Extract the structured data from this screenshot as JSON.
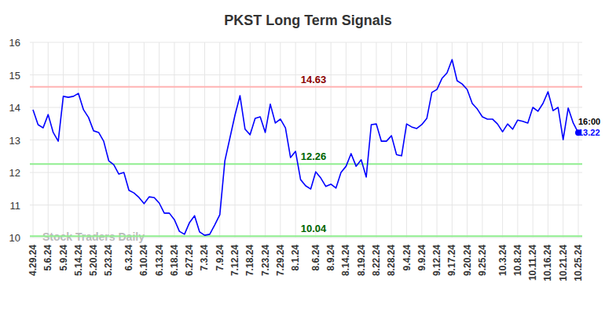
{
  "chart_data": {
    "type": "line",
    "title": "PKST Long Term Signals",
    "categories": [
      "4.29.24",
      null,
      null,
      "5.6.24",
      null,
      null,
      "5.9.24",
      null,
      null,
      "5.14.24",
      null,
      null,
      "5.20.24",
      null,
      null,
      "5.23.24",
      null,
      null,
      null,
      "6.3.24",
      null,
      null,
      "6.10.24",
      null,
      null,
      "6.13.24",
      null,
      null,
      "6.18.24",
      null,
      null,
      "6.27.24",
      null,
      null,
      "7.3.24",
      null,
      null,
      "7.9.24",
      null,
      null,
      "7.12.24",
      null,
      null,
      "7.18.24",
      null,
      null,
      "7.23.24",
      null,
      null,
      "7.29.24",
      null,
      null,
      "8.1.24",
      null,
      null,
      null,
      "8.6.24",
      null,
      null,
      "8.9.24",
      null,
      null,
      "8.14.24",
      null,
      null,
      "8.19.24",
      null,
      null,
      "8.22.24",
      null,
      null,
      "8.28.24",
      null,
      null,
      "9.4.24",
      null,
      null,
      "9.9.24",
      null,
      null,
      "9.12.24",
      null,
      null,
      "9.17.24",
      null,
      null,
      "9.20.24",
      null,
      null,
      "9.25.24",
      null,
      null,
      null,
      "10.3.24",
      null,
      null,
      "10.8.24",
      null,
      null,
      "10.11.24",
      null,
      null,
      "10.16.24",
      null,
      null,
      "10.21.24",
      null,
      null,
      "10.25.24"
    ],
    "values": [
      13.93,
      13.47,
      13.37,
      13.78,
      13.23,
      12.96,
      14.34,
      14.31,
      14.34,
      14.43,
      13.93,
      13.69,
      13.28,
      13.23,
      12.96,
      12.36,
      12.24,
      11.95,
      12.0,
      11.45,
      11.37,
      11.23,
      11.04,
      11.25,
      11.23,
      11.06,
      10.75,
      10.75,
      10.55,
      10.19,
      10.1,
      10.46,
      10.67,
      10.17,
      10.07,
      10.1,
      10.39,
      10.7,
      12.36,
      13.06,
      13.76,
      14.36,
      13.33,
      13.16,
      13.66,
      13.71,
      13.23,
      14.1,
      13.52,
      13.64,
      13.37,
      12.46,
      12.65,
      11.78,
      11.59,
      11.49,
      12.02,
      11.83,
      11.57,
      11.64,
      11.52,
      12.0,
      12.19,
      12.58,
      12.19,
      12.39,
      11.86,
      13.47,
      13.49,
      12.96,
      12.96,
      13.13,
      12.55,
      12.51,
      13.49,
      13.4,
      13.35,
      13.47,
      13.66,
      14.46,
      14.55,
      14.89,
      15.06,
      15.47,
      14.82,
      14.72,
      14.55,
      14.12,
      13.95,
      13.71,
      13.64,
      13.64,
      13.49,
      13.25,
      13.49,
      13.33,
      13.61,
      13.57,
      13.52,
      14.0,
      13.88,
      14.12,
      14.48,
      13.9,
      14.0,
      13.01,
      13.98,
      13.52,
      13.22
    ],
    "color": "#0000ff",
    "ylim": [
      10,
      16
    ],
    "yticks": [
      10,
      11,
      12,
      13,
      14,
      15,
      16
    ],
    "grid": true,
    "signals": [
      {
        "value": 14.63,
        "label": "14.63",
        "color": "#ffb3b3",
        "label_color": "#8b0000"
      },
      {
        "value": 12.26,
        "label": "12.26",
        "color": "#90ee90",
        "label_color": "#006400"
      },
      {
        "value": 10.04,
        "label": "10.04",
        "color": "#90ee90",
        "label_color": "#006400"
      }
    ],
    "last_point": {
      "time_label": "16:00",
      "value_label": "13.22"
    },
    "watermark": "Stock Traders Daily"
  }
}
